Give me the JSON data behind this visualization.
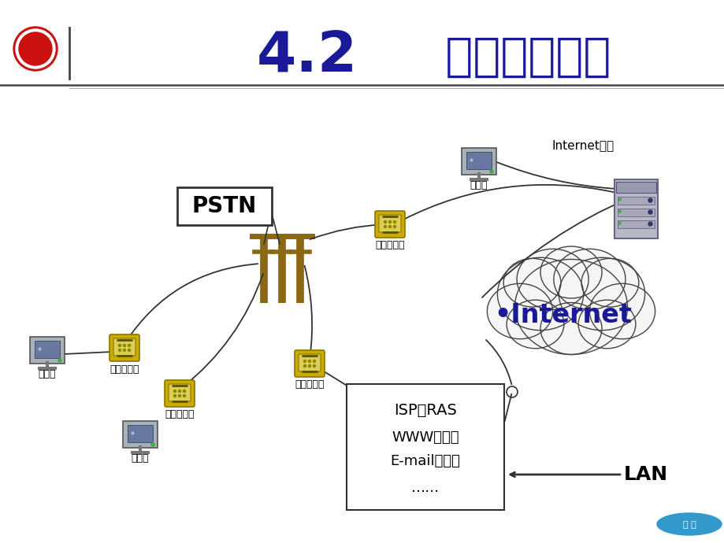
{
  "title_num": "4.2",
  "title_text": " 拨号接入方式",
  "title_color": "#1a1a99",
  "bg_color": "#ffffff",
  "internet_text": "•Internet",
  "internet_color": "#1a1a99",
  "pstn_label": "PSTN",
  "isp_line1": "ISP的RAS",
  "isp_line2": "WWW服务器",
  "isp_line3": "E-mail服务器",
  "isp_line4": "……",
  "lan_text": "LAN",
  "internet_host_label": "Internet主机",
  "ws_label": "工作站",
  "modem_label": "调制解调器",
  "bottom_nav_color": "#3399cc",
  "line_color": "#333333",
  "pole_color": "#8B6914"
}
